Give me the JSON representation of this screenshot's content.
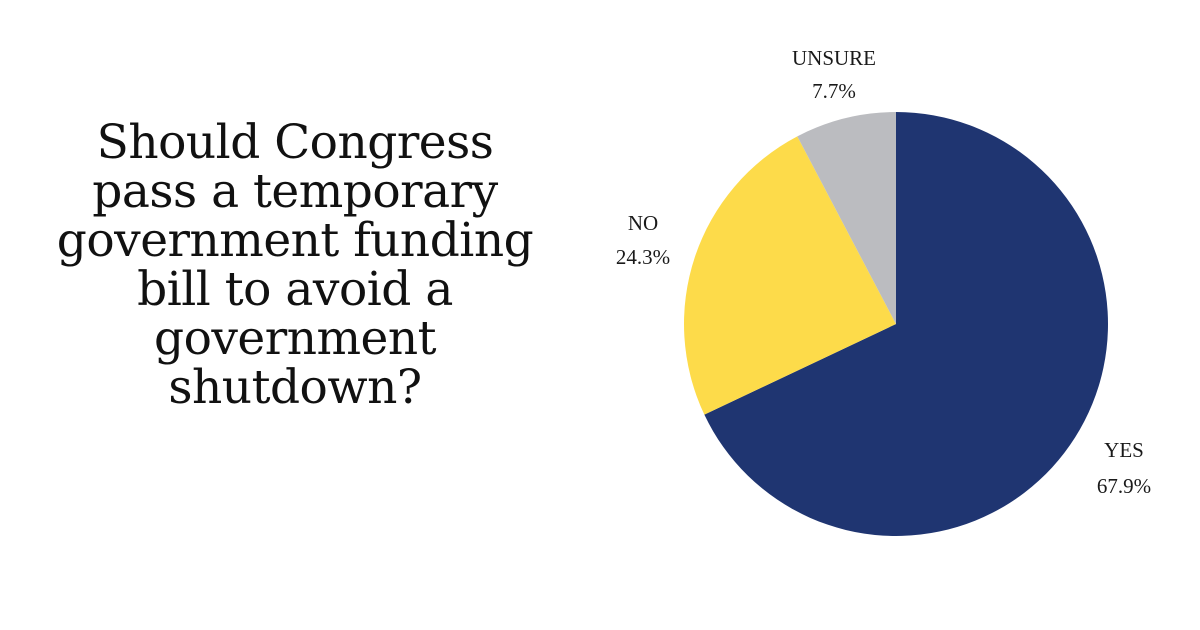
{
  "question": "Should Congress pass a temporary government funding bill to avoid a government shutdown?",
  "chart_data": {
    "type": "pie",
    "categories": [
      "YES",
      "NO",
      "UNSURE"
    ],
    "values": [
      67.9,
      24.3,
      7.7
    ],
    "value_labels": [
      "67.9%",
      "24.3%",
      "7.7%"
    ],
    "colors": [
      "#1f3571",
      "#fddb4a",
      "#bbbcc0"
    ],
    "start_angle_deg": 0,
    "direction": "clockwise"
  }
}
